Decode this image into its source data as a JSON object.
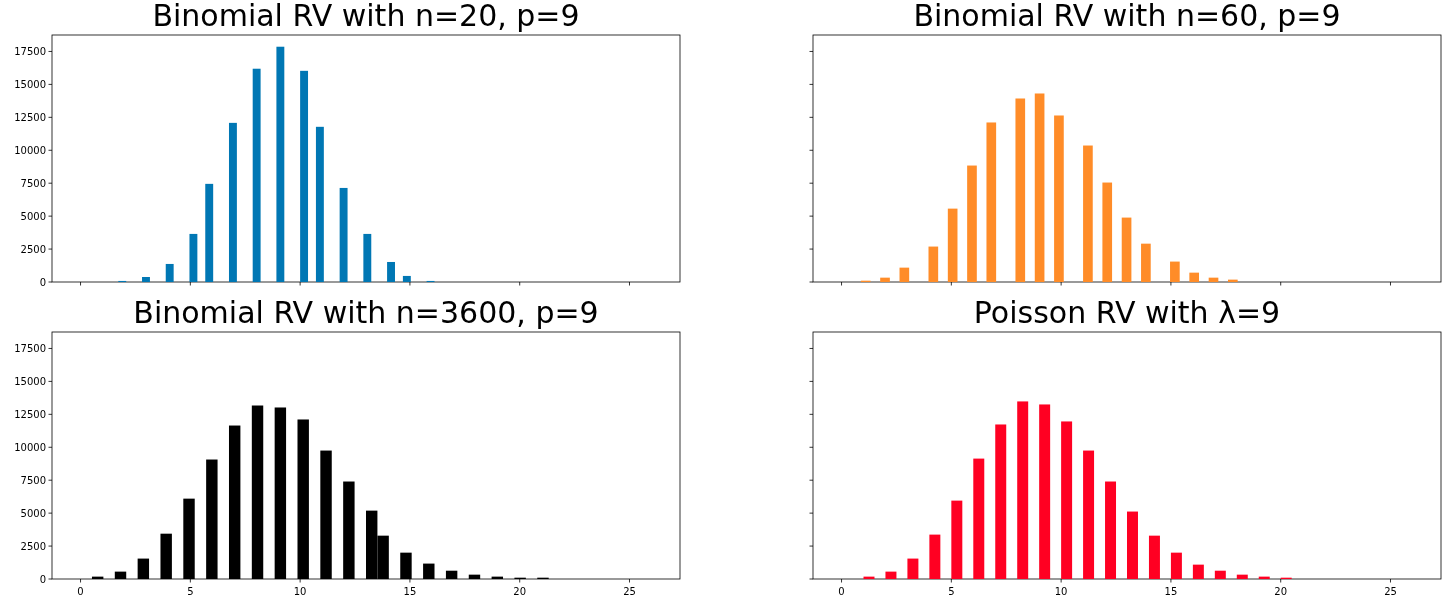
{
  "chart_data": [
    {
      "type": "histogram",
      "title": "Binomial RV with n=20, p=9",
      "color": "#0077b4",
      "xlim": [
        -1.3,
        27.3
      ],
      "xticks": [
        0,
        5,
        10,
        15,
        20,
        25
      ],
      "ylim": [
        0,
        18750
      ],
      "yticks": [
        0,
        2500,
        5000,
        7500,
        10000,
        12500,
        15000,
        17500
      ],
      "tick_labels": "y",
      "grid": false,
      "bins": [
        1,
        1.36,
        1.72,
        2.08,
        2.44,
        2.8,
        3.16,
        3.52,
        3.88,
        4.24,
        4.6,
        4.96,
        5.32,
        5.68,
        6.04,
        6.4,
        6.76,
        7.12,
        7.48,
        7.84,
        8.2,
        8.56,
        8.92,
        9.28,
        9.64,
        10,
        10.36,
        10.72,
        11.08,
        11.44,
        11.8,
        12.16,
        12.52,
        12.88,
        13.24,
        13.6,
        13.96,
        14.32,
        14.68,
        15.04,
        15.4,
        15.76,
        16.12,
        16.48,
        16.84,
        17.2,
        17.56,
        17.92,
        18.28,
        18.64,
        19
      ],
      "values": [
        0,
        0,
        80,
        0,
        0,
        380,
        0,
        0,
        1370,
        0,
        0,
        3650,
        0,
        7450,
        0,
        0,
        12080,
        0,
        0,
        16190,
        0,
        0,
        17860,
        0,
        0,
        16030,
        0,
        11780,
        0,
        0,
        7140,
        0,
        0,
        3650,
        0,
        0,
        1520,
        0,
        460,
        0,
        0,
        80,
        0,
        0,
        0,
        0,
        0,
        0,
        0,
        0
      ]
    },
    {
      "type": "histogram",
      "title": "Binomial RV with n=60, p=9",
      "color": "#ff8c28",
      "xlim": [
        -1.3,
        27.3
      ],
      "xticks": [
        0,
        5,
        10,
        15,
        20,
        25
      ],
      "ylim": [
        0,
        18750
      ],
      "yticks": [
        0,
        2500,
        5000,
        7500,
        10000,
        12500,
        15000,
        17500
      ],
      "tick_labels": false,
      "grid": false,
      "bins": [
        0,
        0.44,
        0.88,
        1.32,
        1.76,
        2.2,
        2.64,
        3.08,
        3.52,
        3.96,
        4.4,
        4.84,
        5.28,
        5.72,
        6.16,
        6.6,
        7.04,
        7.48,
        7.92,
        8.36,
        8.8,
        9.24,
        9.68,
        10.12,
        10.56,
        11,
        11.44,
        11.88,
        12.32,
        12.76,
        13.2,
        13.64,
        14.08,
        14.52,
        14.96,
        15.4,
        15.84,
        16.28,
        16.72,
        17.16,
        17.6,
        18.04,
        18.48,
        18.92,
        19.36,
        19.8,
        20.24,
        20.68,
        21.12,
        21.56,
        22
      ],
      "values": [
        0,
        0,
        100,
        0,
        330,
        0,
        1090,
        0,
        0,
        2690,
        0,
        5570,
        0,
        8840,
        0,
        12110,
        0,
        0,
        13930,
        0,
        14310,
        0,
        12640,
        0,
        0,
        10360,
        0,
        7550,
        0,
        4890,
        0,
        2910,
        0,
        0,
        1550,
        0,
        710,
        0,
        330,
        0,
        180,
        0,
        0,
        0,
        0,
        0,
        0,
        0,
        0,
        0
      ]
    },
    {
      "type": "histogram",
      "title": "Binomial RV with n=3600, p=9",
      "color": "#000000",
      "xlim": [
        -1.3,
        27.3
      ],
      "xticks": [
        0,
        5,
        10,
        15,
        20,
        25
      ],
      "ylim": [
        0,
        18750
      ],
      "yticks": [
        0,
        2500,
        5000,
        7500,
        10000,
        12500,
        15000,
        17500
      ],
      "grid": false,
      "bins": [
        0,
        0.52,
        1.04,
        1.56,
        2.08,
        2.6,
        3.12,
        3.64,
        4.16,
        4.68,
        5.2,
        5.72,
        6.24,
        6.76,
        7.28,
        7.8,
        8.32,
        8.84,
        9.36,
        9.88,
        10.4,
        10.92,
        11.44,
        11.96,
        12.48,
        13,
        13.52,
        14.04,
        14.56,
        15.08,
        15.6,
        16.12,
        16.64,
        17.16,
        17.68,
        18.2,
        18.72,
        19.24,
        19.76,
        20.28,
        20.8,
        21.32,
        21.84,
        22.36,
        22.88,
        23.4,
        23.92,
        24.44,
        24.96,
        25.48,
        26
      ],
      "values": [
        0,
        180,
        0,
        560,
        0,
        1550,
        0,
        3440,
        0,
        6100,
        0,
        9070,
        0,
        11650,
        0,
        13170,
        0,
        13020,
        0,
        12110,
        0,
        9750,
        0,
        7400,
        0,
        5190,
        3290,
        0,
        2000,
        0,
        1170,
        0,
        630,
        0,
        330,
        0,
        180,
        0,
        100,
        0,
        100,
        0,
        0,
        0,
        0,
        0,
        0,
        0,
        0,
        0
      ]
    },
    {
      "type": "histogram",
      "title": "Poisson RV with λ=9",
      "color": "#ff0022",
      "xlim": [
        -1.3,
        27.3
      ],
      "xticks": [
        0,
        5,
        10,
        15,
        20,
        25
      ],
      "ylim": [
        0,
        18750
      ],
      "yticks": [
        0,
        2500,
        5000,
        7500,
        10000,
        12500,
        15000,
        17500
      ],
      "tick_labels": "x",
      "grid": false,
      "bins": [
        0,
        0.5,
        1,
        1.5,
        2,
        2.5,
        3,
        3.5,
        4,
        4.5,
        5,
        5.5,
        6,
        6.5,
        7,
        7.5,
        8,
        8.5,
        9,
        9.5,
        10,
        10.5,
        11,
        11.5,
        12,
        12.5,
        13,
        13.5,
        14,
        14.5,
        15,
        15.5,
        16,
        16.5,
        17,
        17.5,
        18,
        18.5,
        19,
        19.5,
        20,
        20.5,
        21,
        21.5,
        22,
        22.5,
        23,
        23.5,
        24,
        24.5,
        25
      ],
      "values": [
        0,
        0,
        180,
        0,
        560,
        0,
        1550,
        0,
        3370,
        0,
        5950,
        0,
        9140,
        0,
        11730,
        0,
        13480,
        0,
        13250,
        0,
        11960,
        0,
        9750,
        0,
        7400,
        0,
        5120,
        0,
        3290,
        0,
        2000,
        0,
        1090,
        0,
        630,
        0,
        330,
        0,
        180,
        0,
        100,
        0,
        0,
        0,
        0,
        0,
        0,
        0,
        0,
        0
      ]
    }
  ]
}
